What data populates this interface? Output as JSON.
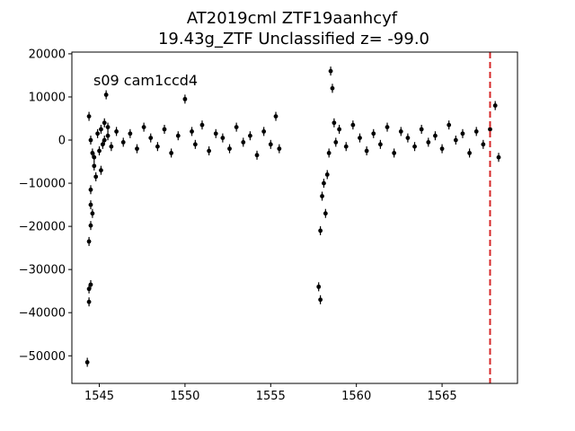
{
  "chart_data": {
    "type": "scatter",
    "title": "AT2019cml  ZTF19aanhcyf",
    "subtitle": "19.43g_ZTF Unclassified z= -99.0",
    "annotation": "s09 cam1ccd4",
    "xlabel": "",
    "ylabel": "",
    "xlim": [
      1543.4,
      1569.4
    ],
    "ylim": [
      -56400,
      20400
    ],
    "x_ticks": [
      1545,
      1550,
      1555,
      1560,
      1565
    ],
    "y_ticks": [
      -50000,
      -40000,
      -30000,
      -20000,
      -10000,
      0,
      10000,
      20000
    ],
    "x_tick_labels": [
      "1545",
      "1550",
      "1555",
      "1560",
      "1565"
    ],
    "y_tick_labels": [
      "−50000",
      "−40000",
      "−30000",
      "−20000",
      "−10000",
      "0",
      "10000",
      "20000"
    ],
    "vline": {
      "x": 1567.8,
      "color": "#d62728",
      "style": "dashed"
    },
    "marker_color": "#000000",
    "grid": false,
    "series": [
      {
        "x": [
          1544.3,
          1544.4,
          1544.4,
          1544.5,
          1544.4,
          1544.5,
          1544.6,
          1544.5,
          1544.4,
          1544.5,
          1544.6,
          1544.7,
          1544.8,
          1544.5,
          1544.7,
          1544.9,
          1545.0,
          1545.1,
          1545.2,
          1545.3,
          1545.4,
          1545.5,
          1545.1,
          1545.3,
          1545.5,
          1545.7,
          1546.0,
          1546.4,
          1546.8,
          1547.2,
          1547.6,
          1548.0,
          1548.4,
          1548.8,
          1549.2,
          1549.6,
          1550.0,
          1550.4,
          1550.6,
          1551.0,
          1551.4,
          1551.8,
          1552.2,
          1552.6,
          1553.0,
          1553.4,
          1553.8,
          1554.2,
          1554.6,
          1555.0,
          1555.3,
          1555.5,
          1557.8,
          1557.9,
          1557.9,
          1558.0,
          1558.1,
          1558.2,
          1558.3,
          1558.4,
          1558.5,
          1558.6,
          1558.7,
          1558.8,
          1559.0,
          1559.4,
          1559.8,
          1560.2,
          1560.6,
          1561.0,
          1561.4,
          1561.8,
          1562.2,
          1562.6,
          1563.0,
          1563.4,
          1563.8,
          1564.2,
          1564.6,
          1565.0,
          1565.4,
          1565.8,
          1566.2,
          1566.6,
          1567.0,
          1567.4,
          1567.8,
          1568.1,
          1568.3
        ],
        "y": [
          -51500,
          -37500,
          -34500,
          -33500,
          -23500,
          -19800,
          -17000,
          -11500,
          5500,
          0,
          -3000,
          -6000,
          -8500,
          -15000,
          -4000,
          1500,
          -2500,
          2500,
          -1000,
          4000,
          10500,
          1000,
          -7000,
          0,
          3000,
          -1500,
          2000,
          -500,
          1500,
          -2000,
          3000,
          500,
          -1500,
          2500,
          -3000,
          1000,
          9500,
          2000,
          -1000,
          3500,
          -2500,
          1500,
          500,
          -2000,
          3000,
          -500,
          1000,
          -3500,
          2000,
          -1000,
          5500,
          -2000,
          -34000,
          -37000,
          -21000,
          -13000,
          -10000,
          -17000,
          -8000,
          -3000,
          16000,
          12000,
          4000,
          -500,
          2500,
          -1500,
          3500,
          500,
          -2500,
          1500,
          -1000,
          3000,
          -3000,
          2000,
          500,
          -1500,
          2500,
          -500,
          1000,
          -2000,
          3500,
          0,
          1500,
          -3000,
          2000,
          -1000,
          2500,
          8000,
          -4000
        ]
      }
    ]
  }
}
